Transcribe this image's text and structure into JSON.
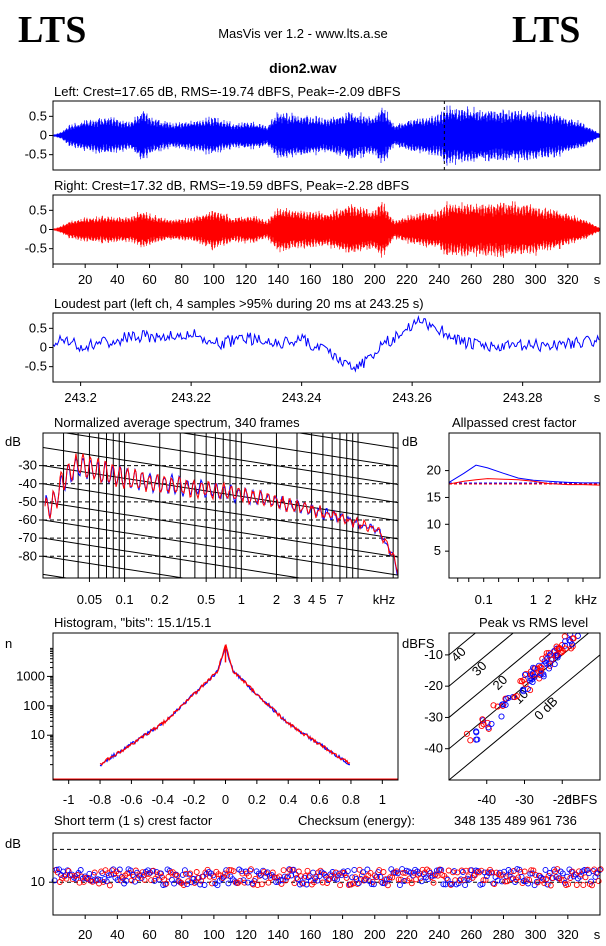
{
  "header": {
    "logo_left": "LTS",
    "logo_right": "LTS",
    "app_title": "MasVis ver 1.2 - www.lts.a.se",
    "filename": "dion2.wav"
  },
  "colors": {
    "left": "#0000ff",
    "right": "#ff0000",
    "axis": "#000000"
  },
  "chart_data": [
    {
      "type": "area",
      "title": "Left: Crest=17.65 dB, RMS=-19.74 dBFS, Peak=-2.09 dBFS",
      "series": [
        {
          "name": "Left",
          "color": "#0000ff"
        }
      ],
      "ylim": [
        -0.9,
        0.9
      ],
      "y_ticks": [
        "0.5",
        "0",
        "-0.5"
      ],
      "x_range_s": [
        0,
        340
      ],
      "marker_s": 243.25,
      "envelope_control_points": [
        [
          0,
          0.02
        ],
        [
          5,
          0.1
        ],
        [
          10,
          0.3
        ],
        [
          20,
          0.45
        ],
        [
          35,
          0.55
        ],
        [
          48,
          0.4
        ],
        [
          55,
          0.75
        ],
        [
          63,
          0.5
        ],
        [
          75,
          0.35
        ],
        [
          88,
          0.45
        ],
        [
          100,
          0.55
        ],
        [
          112,
          0.35
        ],
        [
          125,
          0.4
        ],
        [
          133,
          0.28
        ],
        [
          140,
          0.72
        ],
        [
          155,
          0.6
        ],
        [
          170,
          0.5
        ],
        [
          185,
          0.7
        ],
        [
          198,
          0.55
        ],
        [
          205,
          0.85
        ],
        [
          212,
          0.3
        ],
        [
          225,
          0.5
        ],
        [
          240,
          0.6
        ],
        [
          245,
          0.85
        ],
        [
          258,
          0.8
        ],
        [
          275,
          0.75
        ],
        [
          295,
          0.75
        ],
        [
          315,
          0.6
        ],
        [
          330,
          0.35
        ],
        [
          340,
          0.05
        ]
      ]
    },
    {
      "type": "area",
      "title": "Right: Crest=17.32 dB, RMS=-19.59 dBFS, Peak=-2.28 dBFS",
      "series": [
        {
          "name": "Right",
          "color": "#ff0000"
        }
      ],
      "ylim": [
        -0.9,
        0.9
      ],
      "y_ticks": [
        "0.5",
        "0",
        "-0.5"
      ],
      "x_range_s": [
        0,
        340
      ],
      "x_ticks": [
        "20",
        "40",
        "60",
        "80",
        "100",
        "120",
        "140",
        "160",
        "180",
        "200",
        "220",
        "240",
        "260",
        "280",
        "300",
        "320"
      ],
      "x_unit": "s",
      "envelope_control_points": [
        [
          0,
          0.02
        ],
        [
          5,
          0.1
        ],
        [
          10,
          0.25
        ],
        [
          20,
          0.35
        ],
        [
          35,
          0.4
        ],
        [
          48,
          0.35
        ],
        [
          55,
          0.55
        ],
        [
          63,
          0.4
        ],
        [
          75,
          0.3
        ],
        [
          88,
          0.35
        ],
        [
          100,
          0.6
        ],
        [
          112,
          0.35
        ],
        [
          125,
          0.4
        ],
        [
          133,
          0.25
        ],
        [
          140,
          0.65
        ],
        [
          155,
          0.55
        ],
        [
          170,
          0.5
        ],
        [
          185,
          0.75
        ],
        [
          198,
          0.55
        ],
        [
          205,
          0.85
        ],
        [
          212,
          0.25
        ],
        [
          225,
          0.45
        ],
        [
          240,
          0.55
        ],
        [
          245,
          0.8
        ],
        [
          258,
          0.75
        ],
        [
          275,
          0.8
        ],
        [
          295,
          0.75
        ],
        [
          315,
          0.55
        ],
        [
          330,
          0.3
        ],
        [
          340,
          0.05
        ]
      ]
    },
    {
      "type": "line",
      "title": "Loudest part (left  ch, 4 samples >95% during 20 ms at 243.25 s)",
      "series": [
        {
          "name": "Left",
          "color": "#0000ff"
        }
      ],
      "xlim": [
        243.195,
        243.294
      ],
      "ylim": [
        -0.9,
        0.9
      ],
      "y_ticks": [
        "0.5",
        "0",
        "-0.5"
      ],
      "x_ticks": [
        "243.2",
        "243.22",
        "243.24",
        "243.26",
        "243.28"
      ],
      "x_unit": "s",
      "x": [
        243.195,
        243.2,
        243.205,
        243.21,
        243.215,
        243.22,
        243.225,
        243.23,
        243.235,
        243.24,
        243.243,
        243.246,
        243.249,
        243.252,
        243.255,
        243.258,
        243.261,
        243.264,
        243.267,
        243.27,
        243.275,
        243.28,
        243.285,
        243.29,
        243.294
      ],
      "y": [
        0.2,
        0.05,
        0.15,
        0.3,
        0.25,
        0.35,
        0.1,
        0.25,
        0.1,
        0.2,
        0.0,
        -0.2,
        -0.55,
        -0.35,
        0.1,
        0.35,
        0.7,
        0.55,
        0.3,
        0.1,
        0.0,
        0.05,
        0.05,
        0.15,
        0.15
      ]
    },
    {
      "type": "line",
      "title": "Normalized average spectrum, 340 frames",
      "ylabel": "dB",
      "y_ticks": [
        "-30",
        "-40",
        "-50",
        "-60",
        "-70",
        "-80"
      ],
      "ylim": [
        -92,
        -12
      ],
      "x_scale": "log",
      "xlim": [
        0.02,
        22
      ],
      "x_ticks": [
        "0.05",
        "0.1",
        "0.2",
        "0.5",
        "1",
        "2",
        "3",
        "4",
        "5",
        "7"
      ],
      "x_unit": "kHz",
      "series": [
        {
          "name": "Left",
          "color": "#0000ff",
          "x": [
            0.02,
            0.025,
            0.03,
            0.04,
            0.06,
            0.1,
            0.2,
            0.5,
            1,
            2,
            5,
            10,
            15,
            20,
            22
          ],
          "y": [
            -55,
            -50,
            -38,
            -30,
            -33,
            -37,
            -40,
            -43,
            -46,
            -50,
            -56,
            -62,
            -66,
            -80,
            -90
          ]
        },
        {
          "name": "Right",
          "color": "#ff0000",
          "x": [
            0.02,
            0.025,
            0.03,
            0.04,
            0.06,
            0.1,
            0.2,
            0.5,
            1,
            2,
            5,
            10,
            15,
            20,
            22
          ],
          "y": [
            -56,
            -50,
            -37,
            -29,
            -33,
            -37,
            -40,
            -43,
            -46,
            -50,
            -56,
            -62,
            -66,
            -80,
            -90
          ]
        }
      ]
    },
    {
      "type": "line",
      "title": "Allpassed crest factor",
      "ylabel": "dB",
      "y_ticks": [
        "20",
        "15",
        "10",
        "5"
      ],
      "ylim": [
        0,
        27
      ],
      "x_scale": "log",
      "xlim": [
        0.02,
        22
      ],
      "x_ticks": [
        "0.1",
        "1",
        "2"
      ],
      "x_unit": "kHz",
      "series": [
        {
          "name": "Left",
          "color": "#0000ff",
          "x": [
            0.02,
            0.04,
            0.07,
            0.12,
            0.25,
            0.5,
            1,
            2,
            5,
            10,
            22
          ],
          "y": [
            17.8,
            19.5,
            21,
            20.5,
            19.5,
            18.6,
            18.2,
            18,
            17.8,
            17.7,
            17.7
          ]
        },
        {
          "name": "Right",
          "color": "#ff0000",
          "x": [
            0.02,
            0.04,
            0.07,
            0.12,
            0.25,
            0.5,
            1,
            2,
            5,
            10,
            22
          ],
          "y": [
            17.5,
            18,
            18.3,
            18.5,
            18.4,
            18.3,
            18.0,
            17.6,
            17.4,
            17.4,
            17.3
          ]
        }
      ]
    },
    {
      "type": "line",
      "title": "Histogram, \"bits\": 15.1/15.1",
      "ylabel": "n",
      "y_scale": "log",
      "y_ticks": [
        "1000",
        "100",
        "10"
      ],
      "xlim": [
        -1.1,
        1.1
      ],
      "x_ticks": [
        "-1",
        "-0.8",
        "-0.6",
        "-0.4",
        "-0.2",
        "0",
        "0.2",
        "0.4",
        "0.6",
        "0.8",
        "1"
      ],
      "series": [
        {
          "name": "Left",
          "color": "#0000ff",
          "x": [
            -0.8,
            -0.6,
            -0.4,
            -0.2,
            -0.05,
            0,
            0.05,
            0.2,
            0.4,
            0.6,
            0.8
          ],
          "y": [
            1,
            5,
            25,
            250,
            1500,
            10000,
            1500,
            250,
            25,
            5,
            1
          ]
        },
        {
          "name": "Right",
          "color": "#ff0000",
          "x": [
            -0.8,
            -0.6,
            -0.4,
            -0.2,
            -0.05,
            0,
            0.05,
            0.2,
            0.4,
            0.6,
            0.8
          ],
          "y": [
            1,
            5,
            25,
            250,
            1500,
            12000,
            1500,
            250,
            25,
            5,
            1
          ]
        }
      ]
    },
    {
      "type": "scatter",
      "title": "Peak vs RMS level",
      "ylabel": "dBFS",
      "xlabel": "dBFS",
      "xlim": [
        -50,
        -10
      ],
      "ylim": [
        -50,
        -3
      ],
      "x_ticks": [
        "-40",
        "-30",
        "-20"
      ],
      "y_ticks": [
        "-10",
        "-20",
        "-30",
        "-40"
      ],
      "crest_lines": [
        "40",
        "30",
        "20",
        "10",
        "0 dB"
      ],
      "cluster_rms_peak_points": [
        [
          -44,
          -36
        ],
        [
          -40,
          -32
        ],
        [
          -37,
          -28
        ],
        [
          -35,
          -24
        ],
        [
          -32,
          -22
        ],
        [
          -30,
          -20
        ],
        [
          -29,
          -18
        ],
        [
          -27,
          -16
        ],
        [
          -26,
          -15
        ],
        [
          -25,
          -14
        ],
        [
          -24,
          -12
        ],
        [
          -23,
          -11
        ],
        [
          -22,
          -10
        ],
        [
          -21,
          -9
        ],
        [
          -20,
          -8
        ],
        [
          -19,
          -7
        ],
        [
          -18,
          -6
        ],
        [
          -17,
          -5
        ]
      ]
    },
    {
      "type": "scatter",
      "title": "Short term (1 s) crest factor",
      "ylabel": "dB",
      "y_ticks": [
        "10"
      ],
      "ylim": [
        0,
        25
      ],
      "x_range_s": [
        0,
        340
      ],
      "x_ticks": [
        "20",
        "40",
        "60",
        "80",
        "100",
        "120",
        "140",
        "160",
        "180",
        "200",
        "220",
        "240",
        "260",
        "280",
        "300",
        "320"
      ],
      "x_unit": "s",
      "checksum_label": "Checksum (energy):",
      "checksum_value": "348 135 489 961 736",
      "typical_crest_db": 11.5
    }
  ]
}
